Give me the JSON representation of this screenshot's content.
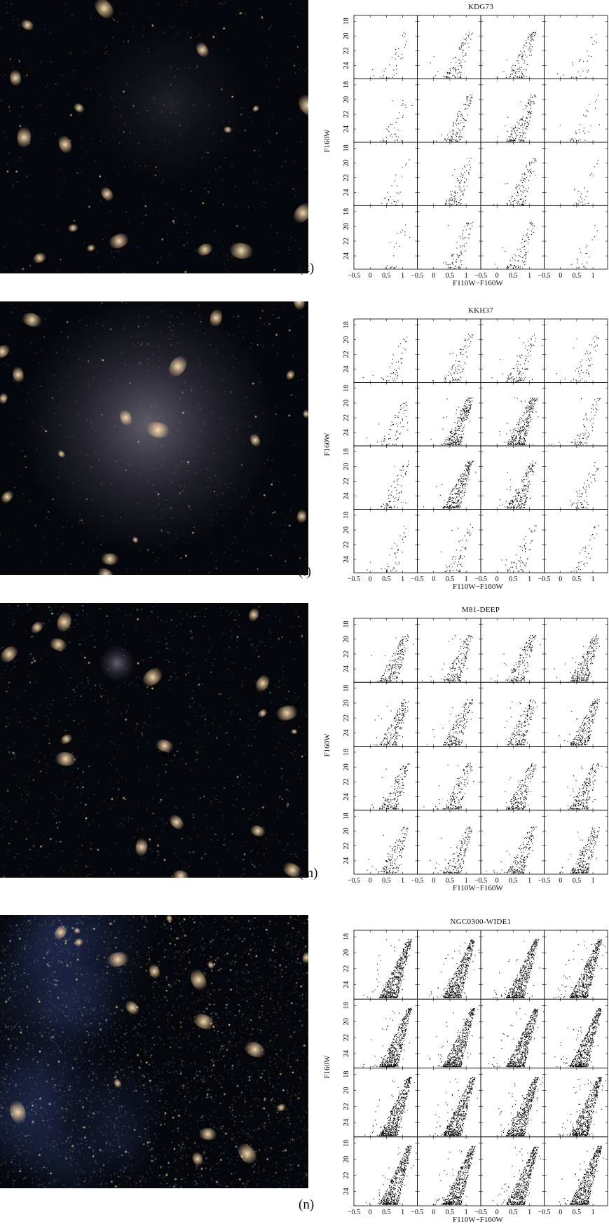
{
  "panels": [
    {
      "label": "(k)",
      "title": "KDG73",
      "ylabel": "F160W",
      "xlabel": "F110W−F160W",
      "sky": {
        "density": 0.6,
        "galaxy": {
          "fx": 0.55,
          "fy": 0.38,
          "size": 0.28,
          "brightness": 0.25
        },
        "blue": 0.0,
        "seed": 11
      },
      "density_grid": [
        [
          0.15,
          0.45,
          0.55,
          0.12
        ],
        [
          0.18,
          0.55,
          0.75,
          0.15
        ],
        [
          0.12,
          0.45,
          0.5,
          0.12
        ],
        [
          0.1,
          0.35,
          0.4,
          0.1
        ]
      ],
      "tip_spread": 0.4
    },
    {
      "label": "(l)",
      "title": "KKH37",
      "ylabel": "F160W",
      "xlabel": "F110W−F160W",
      "sky": {
        "density": 0.7,
        "galaxy": {
          "fx": 0.48,
          "fy": 0.45,
          "size": 0.42,
          "brightness": 0.85
        },
        "blue": 0.0,
        "seed": 23
      },
      "density_grid": [
        [
          0.2,
          0.4,
          0.5,
          0.25
        ],
        [
          0.3,
          1.3,
          1.4,
          0.35
        ],
        [
          0.35,
          1.3,
          1.0,
          0.3
        ],
        [
          0.2,
          0.3,
          0.3,
          0.15
        ]
      ],
      "tip_spread": 0.45
    },
    {
      "label": "(m)",
      "title": "M81-DEEP",
      "ylabel": "F160W",
      "xlabel": "F110W−F160W",
      "sky": {
        "density": 1.4,
        "galaxy": {
          "fx": 0.38,
          "fy": 0.22,
          "size": 0.06,
          "brightness": 0.9
        },
        "blue": 0.0,
        "seed": 37
      },
      "density_grid": [
        [
          0.9,
          0.8,
          0.8,
          1.1
        ],
        [
          0.9,
          0.9,
          0.9,
          1.1
        ],
        [
          0.8,
          0.8,
          1.0,
          1.0
        ],
        [
          0.7,
          0.8,
          0.9,
          1.1
        ]
      ],
      "tip_spread": 0.35
    },
    {
      "label": "(n)",
      "title": "NGC0300-WIDE1",
      "ylabel": "F160W",
      "xlabel": "F110W−F160W",
      "sky": {
        "density": 4.5,
        "galaxy": null,
        "blue": 0.35,
        "seed": 53
      },
      "density_grid": [
        [
          2.6,
          2.6,
          2.6,
          2.6
        ],
        [
          2.6,
          2.6,
          2.6,
          2.6
        ],
        [
          2.6,
          2.6,
          2.6,
          2.6
        ],
        [
          2.6,
          2.6,
          2.6,
          2.6
        ]
      ],
      "tip_spread": 0.9
    }
  ],
  "axes": {
    "x_ticks": [
      "−0.5",
      "0",
      "0.5",
      "1"
    ],
    "x_tick_values": [
      -0.5,
      0,
      0.5,
      1
    ],
    "y_ticks": [
      "18",
      "20",
      "22",
      "24"
    ],
    "y_tick_values": [
      18,
      20,
      22,
      24
    ],
    "xlim": [
      -0.5,
      1.45
    ],
    "ylim": [
      25.8,
      17.2
    ]
  }
}
